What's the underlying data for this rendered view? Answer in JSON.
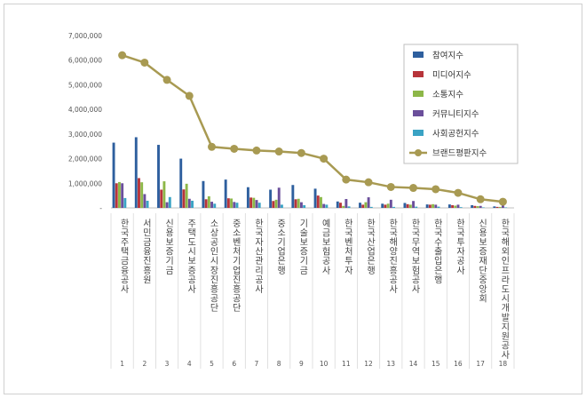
{
  "chart_data": {
    "type": "bar",
    "categories": [
      "한국주택금융공사",
      "서민금융진흥원",
      "신용보증기금",
      "주택도시보증공사",
      "소상공인시장진흥공단",
      "중소벤처기업진흥공단",
      "한국자산관리공사",
      "중소기업은행",
      "기술보증기금",
      "예금보험공사",
      "한국벤처투자",
      "한국산업은행",
      "한국해양진흥공사",
      "한국무역보험공사",
      "한국수출입은행",
      "한국투자공사",
      "신용보증재단중앙회",
      "한국해외인프라도시개발지원공사"
    ],
    "indices": [
      "1",
      "2",
      "3",
      "4",
      "5",
      "6",
      "7",
      "8",
      "9",
      "10",
      "11",
      "12",
      "13",
      "14",
      "15",
      "16",
      "17",
      "18"
    ],
    "y_ticks": [
      "7,000,000",
      "6,000,000",
      "5,000,000",
      "4,000,000",
      "3,000,000",
      "2,000,000",
      "1,000,000",
      "-"
    ],
    "ylim": [
      0,
      7000000
    ],
    "series": [
      {
        "name": "참여지수",
        "kind": "bar",
        "color": "#2e5f9e",
        "values": [
          2650000,
          2870000,
          2560000,
          2000000,
          1090000,
          1150000,
          840000,
          740000,
          930000,
          780000,
          260000,
          210000,
          170000,
          200000,
          140000,
          140000,
          110000,
          60000
        ]
      },
      {
        "name": "미디어지수",
        "kind": "bar",
        "color": "#b7343a",
        "values": [
          1000000,
          1210000,
          740000,
          750000,
          350000,
          390000,
          420000,
          280000,
          350000,
          500000,
          210000,
          130000,
          130000,
          150000,
          130000,
          110000,
          80000,
          40000
        ]
      },
      {
        "name": "소통지수",
        "kind": "bar",
        "color": "#8db748",
        "values": [
          1050000,
          1040000,
          1080000,
          980000,
          470000,
          380000,
          410000,
          330000,
          370000,
          440000,
          80000,
          230000,
          170000,
          130000,
          150000,
          90000,
          70000,
          40000
        ]
      },
      {
        "name": "커뮤니티지수",
        "kind": "bar",
        "color": "#6b4f9b",
        "values": [
          1000000,
          560000,
          230000,
          370000,
          250000,
          240000,
          320000,
          820000,
          230000,
          160000,
          360000,
          430000,
          330000,
          280000,
          130000,
          130000,
          80000,
          100000
        ]
      },
      {
        "name": "사회공헌지수",
        "kind": "bar",
        "color": "#3aa3c4",
        "values": [
          400000,
          290000,
          440000,
          290000,
          170000,
          210000,
          210000,
          130000,
          110000,
          130000,
          60000,
          40000,
          40000,
          50000,
          50000,
          30000,
          20000,
          20000
        ]
      },
      {
        "name": "브랜드평판지수",
        "kind": "line",
        "color": "#a89a52",
        "values": [
          6200000,
          5900000,
          5200000,
          4550000,
          2480000,
          2400000,
          2330000,
          2290000,
          2230000,
          2000000,
          1150000,
          1040000,
          850000,
          810000,
          760000,
          610000,
          350000,
          250000
        ]
      }
    ],
    "legend_position": "top-right",
    "grid": false
  }
}
